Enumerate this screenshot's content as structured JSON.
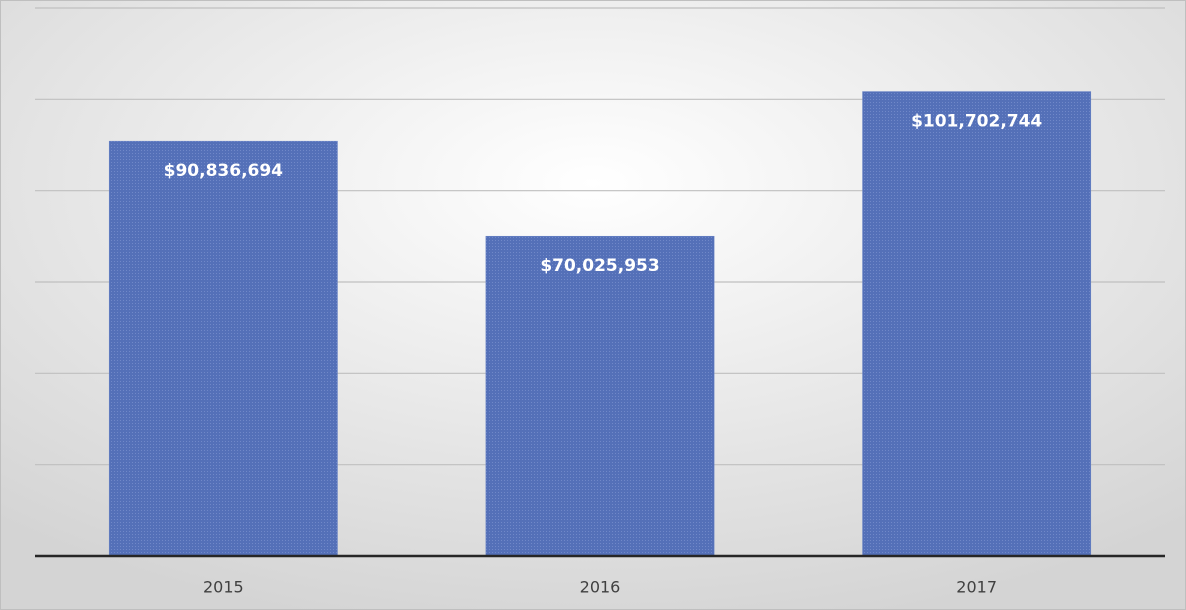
{
  "chart_data": {
    "type": "bar",
    "categories": [
      "2015",
      "2016",
      "2017"
    ],
    "values": [
      90836694,
      70025953,
      101702744
    ],
    "value_labels": [
      "$90,836,694",
      "$70,025,953",
      "$101,702,744"
    ],
    "color": "#5470b8",
    "ylim": [
      0,
      120000000
    ],
    "yticks": [
      0,
      20000000,
      40000000,
      60000000,
      80000000,
      100000000,
      120000000
    ],
    "grid": true
  }
}
